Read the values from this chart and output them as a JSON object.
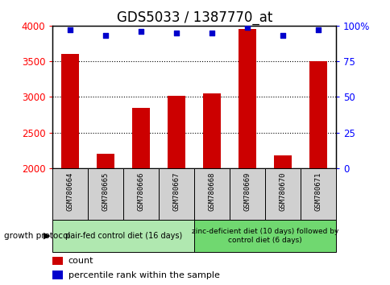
{
  "title": "GDS5033 / 1387770_at",
  "samples": [
    "GSM780664",
    "GSM780665",
    "GSM780666",
    "GSM780667",
    "GSM780668",
    "GSM780669",
    "GSM780670",
    "GSM780671"
  ],
  "counts": [
    3600,
    2200,
    2850,
    3020,
    3050,
    3950,
    2180,
    3500
  ],
  "percentile_ranks": [
    97,
    93,
    96,
    95,
    95,
    99,
    93,
    97
  ],
  "ylim_left": [
    2000,
    4000
  ],
  "ylim_right": [
    0,
    100
  ],
  "yticks_left": [
    2000,
    2500,
    3000,
    3500,
    4000
  ],
  "yticks_right": [
    0,
    25,
    50,
    75,
    100
  ],
  "bar_color": "#cc0000",
  "dot_color": "#0000cc",
  "bar_width": 0.5,
  "group1_label": "pair-fed control diet (16 days)",
  "group2_label": "zinc-deficient diet (10 days) followed by\ncontrol diet (6 days)",
  "group_label_text": "growth protocol",
  "legend_count_label": "count",
  "legend_percentile_label": "percentile rank within the sample",
  "group1_color": "#b0e8b0",
  "group2_color": "#70d870",
  "sample_box_color": "#d0d0d0",
  "title_fontsize": 12,
  "tick_fontsize": 8.5
}
